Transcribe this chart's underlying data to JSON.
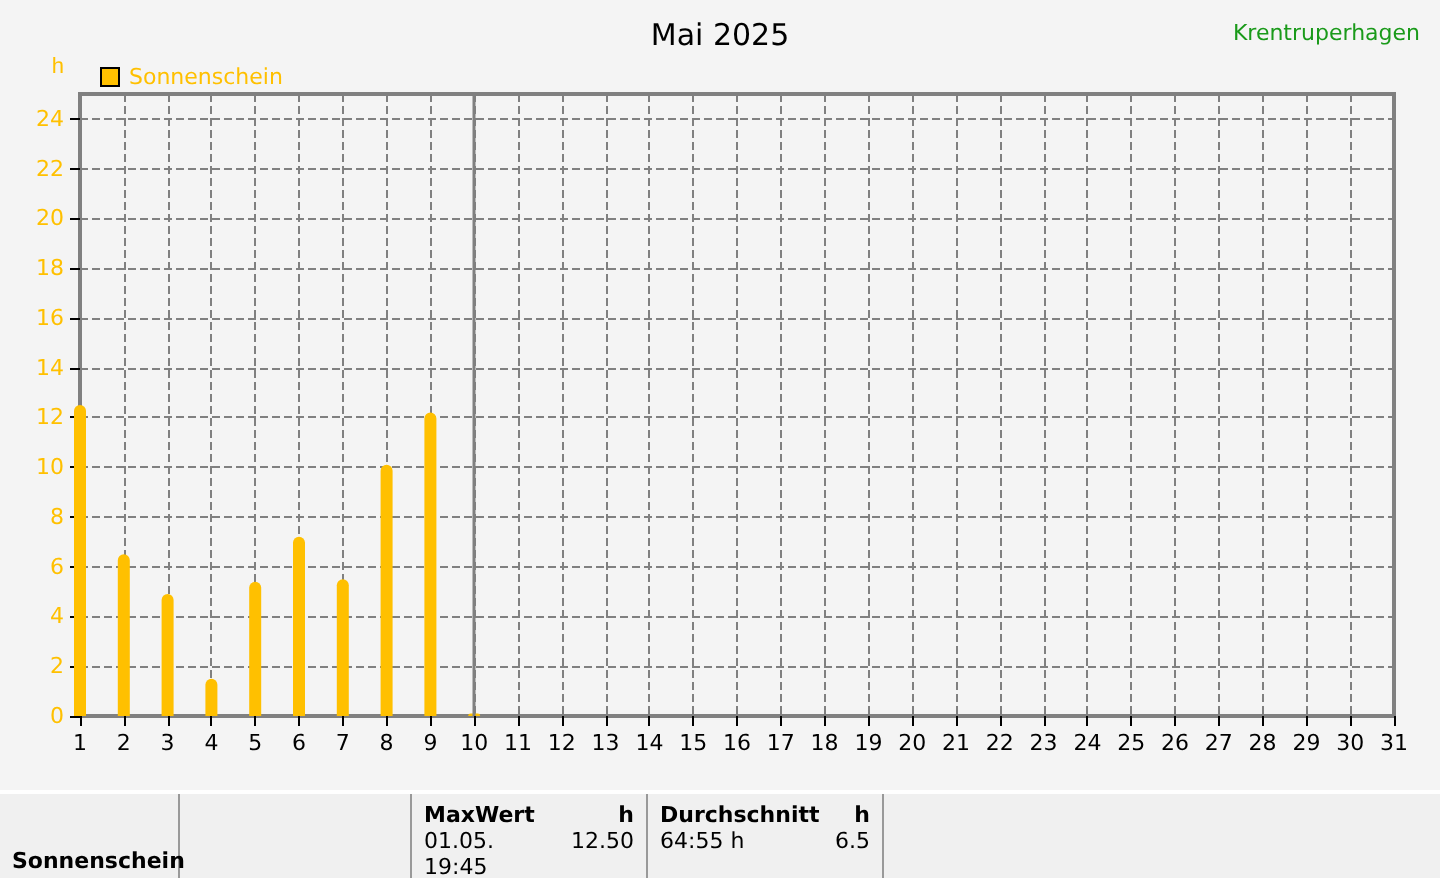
{
  "chart_data": {
    "type": "bar",
    "title": "Mai 2025",
    "subtitle": "Krentruperhagen",
    "ylabel": "h",
    "x": [
      1,
      2,
      3,
      4,
      5,
      6,
      7,
      8,
      9,
      10
    ],
    "series": [
      {
        "name": "Sonnenschein",
        "color": "#ffc000",
        "values": [
          12.5,
          6.5,
          4.9,
          1.5,
          5.4,
          7.2,
          5.5,
          10.1,
          12.2,
          0.1
        ]
      }
    ],
    "xlim": [
      1,
      31
    ],
    "xticks": [
      1,
      2,
      3,
      4,
      5,
      6,
      7,
      8,
      9,
      10,
      11,
      12,
      13,
      14,
      15,
      16,
      17,
      18,
      19,
      20,
      21,
      22,
      23,
      24,
      25,
      26,
      27,
      28,
      29,
      30,
      31
    ],
    "ylim": [
      0,
      25
    ],
    "yticks": [
      0,
      2,
      4,
      6,
      8,
      10,
      12,
      14,
      16,
      18,
      20,
      22,
      24
    ],
    "grid": true,
    "legend": "top left",
    "ref_lines": [
      {
        "axis": "x",
        "value": 10,
        "color": "#808080",
        "line_style": "solid"
      }
    ],
    "annotations": [
      "Sonnenschein",
      "MaxWert",
      "h",
      "01.05.  19:45",
      "12.50",
      "Durchschnitt",
      "h",
      "64:55 h",
      "6.5"
    ]
  }
}
